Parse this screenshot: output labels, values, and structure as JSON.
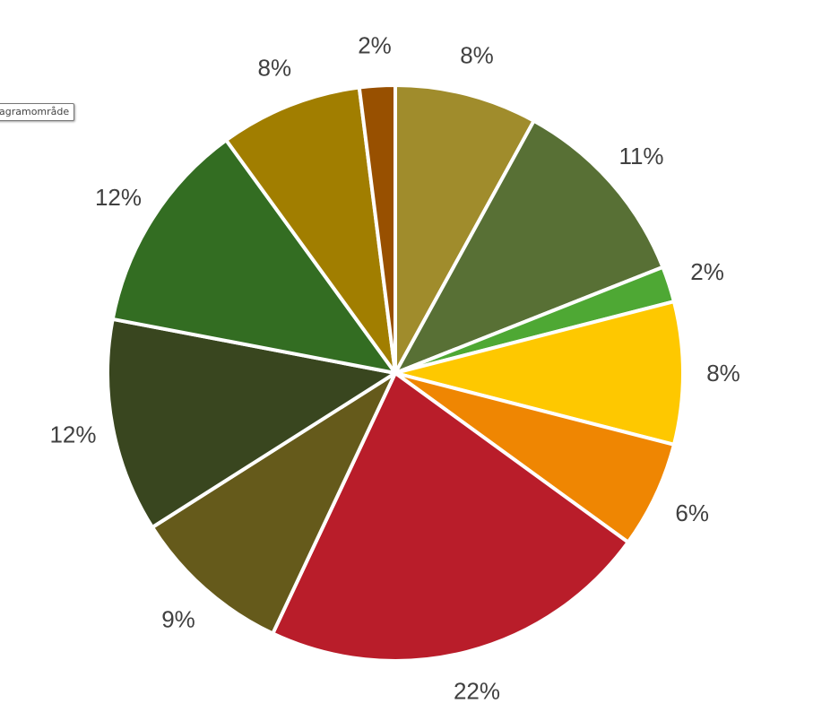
{
  "tooltip": {
    "text": "agramområde"
  },
  "chart_data": {
    "type": "pie",
    "title": "",
    "start_angle_deg": 0,
    "direction": "clockwise",
    "slices": [
      {
        "value": 8.0,
        "label": "8%",
        "color": "#A08C2C"
      },
      {
        "value": 11.0,
        "label": "11%",
        "color": "#587035"
      },
      {
        "value": 2.0,
        "label": "2%",
        "color": "#4EA834"
      },
      {
        "value": 8.0,
        "label": "8%",
        "color": "#FEC800"
      },
      {
        "value": 6.0,
        "label": "6%",
        "color": "#EF8602"
      },
      {
        "value": 22.0,
        "label": "22%",
        "color": "#B91D2A"
      },
      {
        "value": 9.0,
        "label": "9%",
        "color": "#655A1B"
      },
      {
        "value": 12.0,
        "label": "12%",
        "color": "#39461F"
      },
      {
        "value": 12.0,
        "label": "12%",
        "color": "#336D22"
      },
      {
        "value": 8.0,
        "label": "8%",
        "color": "#A17E00"
      },
      {
        "value": 2.0,
        "label": "2%",
        "color": "#985000"
      }
    ]
  }
}
